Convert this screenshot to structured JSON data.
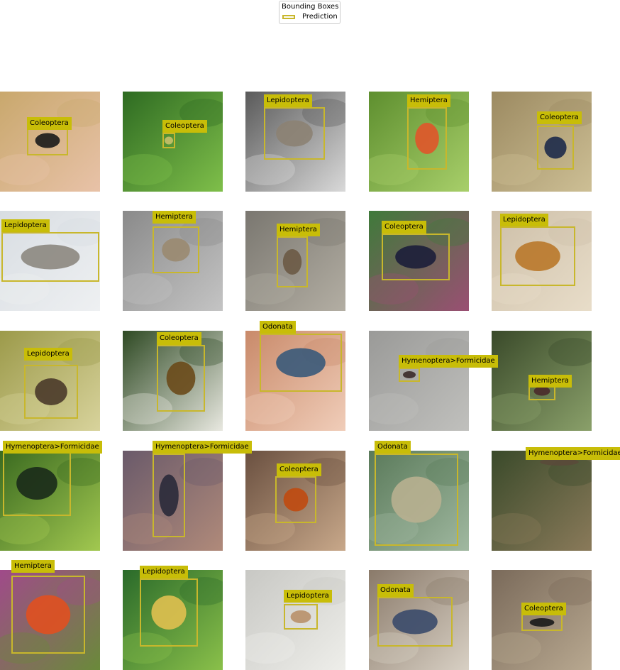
{
  "legend": {
    "title": "Bounding Boxes",
    "entry": "Prediction",
    "color": "#c8b72c"
  },
  "images": [
    {
      "label": "Coleoptera",
      "bg": [
        "#c9a86d",
        "#e8c2a8"
      ],
      "subject": "#1a1a1a"
    },
    {
      "label": "Coleoptera",
      "bg": [
        "#2e6b22",
        "#7fbf4a"
      ],
      "subject": "#c9c06a"
    },
    {
      "label": "Lepidoptera",
      "bg": [
        "#5a5a5a",
        "#d9d9d9"
      ],
      "subject": "#8c8273"
    },
    {
      "label": "Hemiptera",
      "bg": [
        "#5e8f2f",
        "#a8cf6a"
      ],
      "subject": "#e0552a"
    },
    {
      "label": "Coleoptera",
      "bg": [
        "#9c8a61",
        "#cdbf95"
      ],
      "subject": "#1d2a4a"
    },
    {
      "label": "Lepidoptera",
      "bg": [
        "#d8dde2",
        "#eef0f2"
      ],
      "subject": "#8c8780"
    },
    {
      "label": "Hemiptera",
      "bg": [
        "#8a8a8a",
        "#c4c4c4"
      ],
      "subject": "#9a8a70"
    },
    {
      "label": "Hemiptera",
      "bg": [
        "#7a7770",
        "#b3aea3"
      ],
      "subject": "#6b5a45"
    },
    {
      "label": "Coleoptera",
      "bg": [
        "#3f7a3a",
        "#9a4f73"
      ],
      "subject": "#1c1e3a"
    },
    {
      "label": "Lepidoptera",
      "bg": [
        "#cdbfa8",
        "#e8ddc9"
      ],
      "subject": "#b9782a"
    },
    {
      "label": "Lepidoptera",
      "bg": [
        "#9c9a4a",
        "#d8d39c"
      ],
      "subject": "#4a3a2a"
    },
    {
      "label": "Coleoptera",
      "bg": [
        "#2f4a24",
        "#e8e8e0"
      ],
      "subject": "#6a4a1a"
    },
    {
      "label": "Odonata",
      "bg": [
        "#c98a6a",
        "#f0cdb9"
      ],
      "subject": "#3a5a7a"
    },
    {
      "label": "Hymenoptera>Formicidae",
      "bg": [
        "#9a9a98",
        "#c0c0bd"
      ],
      "subject": "#3a2a2a"
    },
    {
      "label": "Hemiptera",
      "bg": [
        "#3a4a2a",
        "#8aa06a"
      ],
      "subject": "#4a2a2a"
    },
    {
      "label": "Hymenoptera>Formicidae",
      "bg": [
        "#3a6a20",
        "#a2c850"
      ],
      "subject": "#1a2a1a"
    },
    {
      "label": "Hymenoptera>Formicidae",
      "bg": [
        "#6a5a6a",
        "#b08a7a"
      ],
      "subject": "#2a2a3a"
    },
    {
      "label": "Coleoptera",
      "bg": [
        "#6a5040",
        "#c8a88a"
      ],
      "subject": "#c04a10"
    },
    {
      "label": "Odonata",
      "bg": [
        "#5a7a5a",
        "#a0b8a0"
      ],
      "subject": "#b8b090"
    },
    {
      "label": "Hymenoptera>Formicidae",
      "bg": [
        "#3a4a2a",
        "#8a7a5a"
      ],
      "subject": "#5a4a3a"
    },
    {
      "label": "Hemiptera",
      "bg": [
        "#a04a8a",
        "#6a8a3a"
      ],
      "subject": "#e05020"
    },
    {
      "label": "Lepidoptera",
      "bg": [
        "#2a6a2a",
        "#8ac04a"
      ],
      "subject": "#e0c050"
    },
    {
      "label": "Lepidoptera",
      "bg": [
        "#c8c8c4",
        "#eeeeea"
      ],
      "subject": "#b8906a"
    },
    {
      "label": "Odonata",
      "bg": [
        "#8a7a6a",
        "#d8d0c4"
      ],
      "subject": "#3a4a6a"
    },
    {
      "label": "Coleoptera",
      "bg": [
        "#7a6a5a",
        "#b8a890"
      ],
      "subject": "#1a1a1a"
    }
  ]
}
